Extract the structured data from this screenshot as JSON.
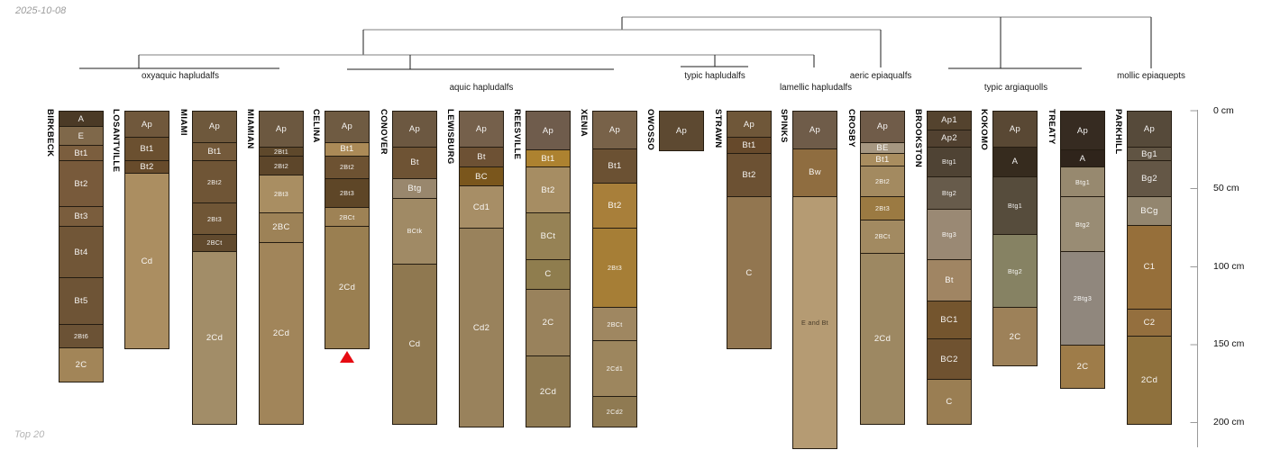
{
  "meta": {
    "date": "2025-10-08",
    "footnote": "Top 20"
  },
  "chart_data": {
    "type": "bar",
    "variant": "soil-profile-depth-columns-with-dendrogram",
    "title": "",
    "depth_axis": {
      "unit": "cm",
      "min": 0,
      "max": 200,
      "side": "right",
      "ticks": [
        {
          "label": "0 cm",
          "cm": 0
        },
        {
          "label": "50 cm",
          "cm": 50
        },
        {
          "label": "100 cm",
          "cm": 100
        },
        {
          "label": "150 cm",
          "cm": 150
        },
        {
          "label": "200 cm",
          "cm": 200
        }
      ]
    },
    "taxonomy_groups": [
      {
        "label": "oxyaquic hapludalfs",
        "members": [
          "BIRKBECK",
          "LOSANTVILLE",
          "MIAMI",
          "MIAMIAN"
        ]
      },
      {
        "label": "aquic hapludalfs",
        "members": [
          "CELINA",
          "CONOVER",
          "LEWISBURG",
          "REESVILLE",
          "XENIA"
        ]
      },
      {
        "label": "typic hapludalfs",
        "members": [
          "OWOSSO",
          "STRAWN"
        ]
      },
      {
        "label": "lamellic hapludalfs",
        "members": [
          "SPINKS"
        ]
      },
      {
        "label": "aeric epiaqualfs",
        "members": [
          "CROSBY"
        ]
      },
      {
        "label": "typic argiaquolls",
        "members": [
          "BROOKSTON",
          "KOKOMO",
          "TREATY"
        ]
      },
      {
        "label": "mollic epiaquepts",
        "members": [
          "PARKHILL"
        ]
      }
    ],
    "profiles": [
      {
        "name": "BIRKBECK",
        "horizons": [
          {
            "label": "A",
            "top_cm": 0,
            "bottom_cm": 10,
            "color": "#4b3a26"
          },
          {
            "label": "E",
            "top_cm": 10,
            "bottom_cm": 22,
            "color": "#7f684a"
          },
          {
            "label": "Bt1",
            "top_cm": 22,
            "bottom_cm": 32,
            "color": "#7b5e3e"
          },
          {
            "label": "Bt2",
            "top_cm": 32,
            "bottom_cm": 61,
            "color": "#785a3b"
          },
          {
            "label": "Bt3",
            "top_cm": 61,
            "bottom_cm": 74,
            "color": "#7a5d3d"
          },
          {
            "label": "Bt4",
            "top_cm": 74,
            "bottom_cm": 107,
            "color": "#715637"
          },
          {
            "label": "Bt5",
            "top_cm": 107,
            "bottom_cm": 137,
            "color": "#6e5436"
          },
          {
            "label": "2Bt6",
            "top_cm": 137,
            "bottom_cm": 152,
            "color": "#6b5235"
          },
          {
            "label": "2C",
            "top_cm": 152,
            "bottom_cm": 173,
            "color": "#a28558"
          }
        ]
      },
      {
        "name": "LOSANTVILLE",
        "horizons": [
          {
            "label": "Ap",
            "top_cm": 0,
            "bottom_cm": 17,
            "color": "#70583c"
          },
          {
            "label": "Bt1",
            "top_cm": 17,
            "bottom_cm": 32,
            "color": "#6b5030"
          },
          {
            "label": "Bt2",
            "top_cm": 32,
            "bottom_cm": 40,
            "color": "#674b2b"
          },
          {
            "label": "Cd",
            "top_cm": 40,
            "bottom_cm": 152,
            "color": "#ab8e61"
          }
        ]
      },
      {
        "name": "MIAMI",
        "horizons": [
          {
            "label": "Ap",
            "top_cm": 0,
            "bottom_cm": 20,
            "color": "#6e583c"
          },
          {
            "label": "Bt1",
            "top_cm": 20,
            "bottom_cm": 32,
            "color": "#745a3b"
          },
          {
            "label": "2Bt2",
            "top_cm": 32,
            "bottom_cm": 59,
            "color": "#6f5536"
          },
          {
            "label": "2Bt3",
            "top_cm": 59,
            "bottom_cm": 79,
            "color": "#705636"
          },
          {
            "label": "2BCt",
            "top_cm": 79,
            "bottom_cm": 90,
            "color": "#614a2e"
          },
          {
            "label": "2Cd",
            "top_cm": 90,
            "bottom_cm": 200,
            "color": "#a28d68"
          }
        ]
      },
      {
        "name": "MIAMIAN",
        "horizons": [
          {
            "label": "Ap",
            "top_cm": 0,
            "bottom_cm": 23,
            "color": "#6c5840"
          },
          {
            "label": "2Bt1",
            "top_cm": 23,
            "bottom_cm": 29,
            "color": "#5e482b"
          },
          {
            "label": "2Bt2",
            "top_cm": 29,
            "bottom_cm": 41,
            "color": "#5d462a"
          },
          {
            "label": "2Bt3",
            "top_cm": 41,
            "bottom_cm": 65,
            "color": "#a98e62"
          },
          {
            "label": "2BC",
            "top_cm": 65,
            "bottom_cm": 84,
            "color": "#9d8257"
          },
          {
            "label": "2Cd",
            "top_cm": 84,
            "bottom_cm": 200,
            "color": "#a1855a"
          }
        ]
      },
      {
        "name": "CELINA",
        "horizons": [
          {
            "label": "Ap",
            "top_cm": 0,
            "bottom_cm": 20,
            "color": "#6f5b42"
          },
          {
            "label": "Bt1",
            "top_cm": 20,
            "bottom_cm": 29,
            "color": "#ab8a57"
          },
          {
            "label": "2Bt2",
            "top_cm": 29,
            "bottom_cm": 43,
            "color": "#6d5232"
          },
          {
            "label": "2Bt3",
            "top_cm": 43,
            "bottom_cm": 62,
            "color": "#5e4627"
          },
          {
            "label": "2BCt",
            "top_cm": 62,
            "bottom_cm": 74,
            "color": "#9e8255"
          },
          {
            "label": "2Cd",
            "top_cm": 74,
            "bottom_cm": 152,
            "color": "#9a7f51"
          }
        ]
      },
      {
        "name": "CONOVER",
        "horizons": [
          {
            "label": "Ap",
            "top_cm": 0,
            "bottom_cm": 23,
            "color": "#6c5841"
          },
          {
            "label": "Bt",
            "top_cm": 23,
            "bottom_cm": 43,
            "color": "#6e5334"
          },
          {
            "label": "Btg",
            "top_cm": 43,
            "bottom_cm": 56,
            "color": "#99876d"
          },
          {
            "label": "BCtk",
            "top_cm": 56,
            "bottom_cm": 98,
            "color": "#a08a65"
          },
          {
            "label": "Cd",
            "top_cm": 98,
            "bottom_cm": 200,
            "color": "#8f7850"
          }
        ]
      },
      {
        "name": "LEWISBURG",
        "horizons": [
          {
            "label": "Ap",
            "top_cm": 0,
            "bottom_cm": 23,
            "color": "#75604b"
          },
          {
            "label": "Bt",
            "top_cm": 23,
            "bottom_cm": 36,
            "color": "#6d5134"
          },
          {
            "label": "BC",
            "top_cm": 36,
            "bottom_cm": 48,
            "color": "#7a561c"
          },
          {
            "label": "Cd1",
            "top_cm": 48,
            "bottom_cm": 75,
            "color": "#a78e66"
          },
          {
            "label": "Cd2",
            "top_cm": 75,
            "bottom_cm": 202,
            "color": "#99825c"
          }
        ]
      },
      {
        "name": "REESVILLE",
        "horizons": [
          {
            "label": "Ap",
            "top_cm": 0,
            "bottom_cm": 25,
            "color": "#6f5c4c"
          },
          {
            "label": "Bt1",
            "top_cm": 25,
            "bottom_cm": 36,
            "color": "#ad8230"
          },
          {
            "label": "Bt2",
            "top_cm": 36,
            "bottom_cm": 65,
            "color": "#a68d63"
          },
          {
            "label": "BCt",
            "top_cm": 65,
            "bottom_cm": 95,
            "color": "#968255"
          },
          {
            "label": "C",
            "top_cm": 95,
            "bottom_cm": 114,
            "color": "#8f7d4e"
          },
          {
            "label": "2C",
            "top_cm": 114,
            "bottom_cm": 157,
            "color": "#99825c"
          },
          {
            "label": "2Cd",
            "top_cm": 157,
            "bottom_cm": 202,
            "color": "#8f7a52"
          }
        ]
      },
      {
        "name": "XENIA",
        "horizons": [
          {
            "label": "Ap",
            "top_cm": 0,
            "bottom_cm": 24,
            "color": "#786249"
          },
          {
            "label": "Bt1",
            "top_cm": 24,
            "bottom_cm": 46,
            "color": "#6b5133"
          },
          {
            "label": "Bt2",
            "top_cm": 46,
            "bottom_cm": 75,
            "color": "#a87f3a"
          },
          {
            "label": "2Bt3",
            "top_cm": 75,
            "bottom_cm": 126,
            "color": "#a67e36"
          },
          {
            "label": "2BCt",
            "top_cm": 126,
            "bottom_cm": 147,
            "color": "#9f8761"
          },
          {
            "label": "2Cd1",
            "top_cm": 147,
            "bottom_cm": 183,
            "color": "#9d865e"
          },
          {
            "label": "2Cd2",
            "top_cm": 183,
            "bottom_cm": 202,
            "color": "#8f7a52"
          }
        ]
      },
      {
        "name": "OWOSSO",
        "horizons": [
          {
            "label": "Ap",
            "top_cm": 0,
            "bottom_cm": 25,
            "color": "#5d4931"
          }
        ]
      },
      {
        "name": "STRAWN",
        "horizons": [
          {
            "label": "Ap",
            "top_cm": 0,
            "bottom_cm": 17,
            "color": "#6f5739"
          },
          {
            "label": "Bt1",
            "top_cm": 17,
            "bottom_cm": 27,
            "color": "#66492b"
          },
          {
            "label": "Bt2",
            "top_cm": 27,
            "bottom_cm": 55,
            "color": "#6c5133"
          },
          {
            "label": "C",
            "top_cm": 55,
            "bottom_cm": 152,
            "color": "#927650"
          }
        ]
      },
      {
        "name": "SPINKS",
        "horizons": [
          {
            "label": "Ap",
            "top_cm": 0,
            "bottom_cm": 24,
            "color": "#6f5c49"
          },
          {
            "label": "Bw",
            "top_cm": 24,
            "bottom_cm": 55,
            "color": "#8f6d40"
          },
          {
            "label": "E and Bt",
            "top_cm": 55,
            "bottom_cm": 216,
            "color": "#b59b73"
          }
        ]
      },
      {
        "name": "CROSBY",
        "horizons": [
          {
            "label": "Ap",
            "top_cm": 0,
            "bottom_cm": 20,
            "color": "#705c49"
          },
          {
            "label": "BE",
            "top_cm": 20,
            "bottom_cm": 27,
            "color": "#a69781"
          },
          {
            "label": "Bt1",
            "top_cm": 27,
            "bottom_cm": 35,
            "color": "#a98d5f"
          },
          {
            "label": "2Bt2",
            "top_cm": 35,
            "bottom_cm": 55,
            "color": "#a38a60"
          },
          {
            "label": "2Bt3",
            "top_cm": 55,
            "bottom_cm": 70,
            "color": "#9b7a42"
          },
          {
            "label": "2BCt",
            "top_cm": 70,
            "bottom_cm": 91,
            "color": "#a28a61"
          },
          {
            "label": "2Cd",
            "top_cm": 91,
            "bottom_cm": 200,
            "color": "#9d8862"
          }
        ]
      },
      {
        "name": "BROOKSTON",
        "horizons": [
          {
            "label": "Ap1",
            "top_cm": 0,
            "bottom_cm": 12,
            "color": "#54432e"
          },
          {
            "label": "Ap2",
            "top_cm": 12,
            "bottom_cm": 23,
            "color": "#514130"
          },
          {
            "label": "Btg1",
            "top_cm": 23,
            "bottom_cm": 42,
            "color": "#4f4334"
          },
          {
            "label": "Btg2",
            "top_cm": 42,
            "bottom_cm": 63,
            "color": "#675b4b"
          },
          {
            "label": "Btg3",
            "top_cm": 63,
            "bottom_cm": 95,
            "color": "#9a8974"
          },
          {
            "label": "Bt",
            "top_cm": 95,
            "bottom_cm": 122,
            "color": "#a08563"
          },
          {
            "label": "BC1",
            "top_cm": 122,
            "bottom_cm": 146,
            "color": "#74552e"
          },
          {
            "label": "BC2",
            "top_cm": 146,
            "bottom_cm": 172,
            "color": "#6f5230"
          },
          {
            "label": "C",
            "top_cm": 172,
            "bottom_cm": 200,
            "color": "#9a7e53"
          }
        ]
      },
      {
        "name": "KOKOMO",
        "horizons": [
          {
            "label": "Ap",
            "top_cm": 0,
            "bottom_cm": 23,
            "color": "#594834"
          },
          {
            "label": "A",
            "top_cm": 23,
            "bottom_cm": 42,
            "color": "#362b1e"
          },
          {
            "label": "Btg1",
            "top_cm": 42,
            "bottom_cm": 79,
            "color": "#564c3c"
          },
          {
            "label": "Btg2",
            "top_cm": 79,
            "bottom_cm": 126,
            "color": "#868263"
          },
          {
            "label": "2C",
            "top_cm": 126,
            "bottom_cm": 163,
            "color": "#9d8159"
          }
        ]
      },
      {
        "name": "TREATY",
        "horizons": [
          {
            "label": "Ap",
            "top_cm": 0,
            "bottom_cm": 25,
            "color": "#362b21"
          },
          {
            "label": "A",
            "top_cm": 25,
            "bottom_cm": 36,
            "color": "#2f241b"
          },
          {
            "label": "Btg1",
            "top_cm": 36,
            "bottom_cm": 55,
            "color": "#97896f"
          },
          {
            "label": "Btg2",
            "top_cm": 55,
            "bottom_cm": 90,
            "color": "#998c74"
          },
          {
            "label": "2Btg3",
            "top_cm": 90,
            "bottom_cm": 150,
            "color": "#90877d"
          },
          {
            "label": "2C",
            "top_cm": 150,
            "bottom_cm": 177,
            "color": "#9e7c49"
          }
        ]
      },
      {
        "name": "PARKHILL",
        "horizons": [
          {
            "label": "Ap",
            "top_cm": 0,
            "bottom_cm": 23,
            "color": "#564a3a"
          },
          {
            "label": "Bg1",
            "top_cm": 23,
            "bottom_cm": 32,
            "color": "#605443"
          },
          {
            "label": "Bg2",
            "top_cm": 32,
            "bottom_cm": 55,
            "color": "#645746"
          },
          {
            "label": "BCg",
            "top_cm": 55,
            "bottom_cm": 73,
            "color": "#93866f"
          },
          {
            "label": "C1",
            "top_cm": 73,
            "bottom_cm": 127,
            "color": "#966f3a"
          },
          {
            "label": "C2",
            "top_cm": 127,
            "bottom_cm": 144,
            "color": "#946f3e"
          },
          {
            "label": "2Cd",
            "top_cm": 144,
            "bottom_cm": 200,
            "color": "#8f713d"
          }
        ]
      }
    ],
    "marker": {
      "shape": "triangle-up",
      "color": "#e60b12",
      "below_profile": "CELINA"
    }
  }
}
